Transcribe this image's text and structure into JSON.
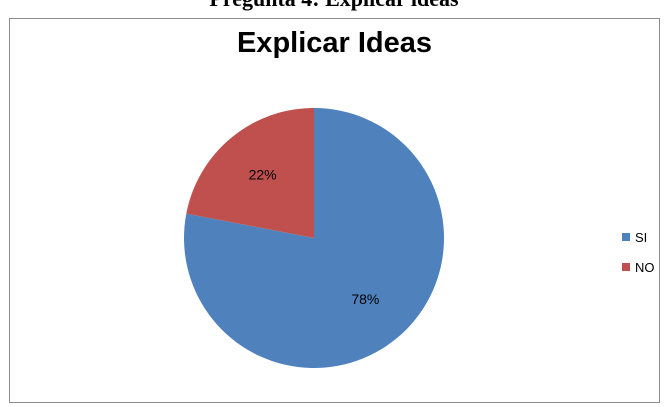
{
  "page": {
    "caption": "Pregunta 4: Explicar ideas"
  },
  "chart_data": {
    "type": "pie",
    "title": "Explicar Ideas",
    "categories": [
      "SI",
      "NO"
    ],
    "values": [
      78,
      22
    ],
    "labels": [
      "78%",
      "22%"
    ],
    "colors": [
      "#4f81bd",
      "#c0504d"
    ],
    "legend_position": "right"
  }
}
